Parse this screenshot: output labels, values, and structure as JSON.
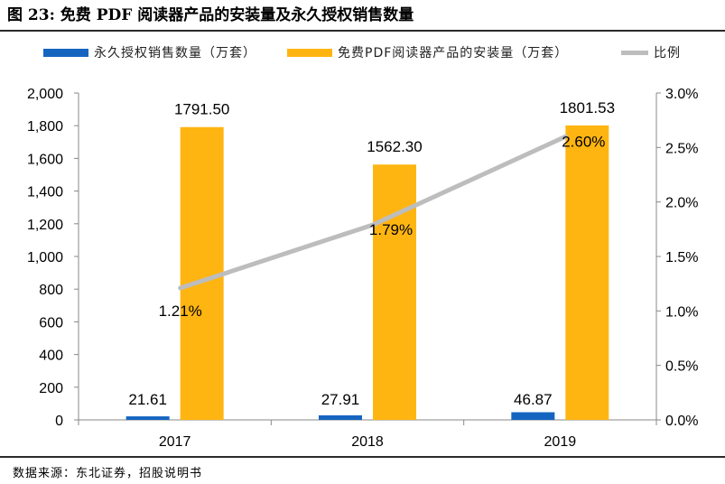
{
  "figure_title": "图 23:  免费 PDF 阅读器产品的安装量及永久授权销售数量",
  "source": "数据来源：东北证券，招股说明书",
  "colors": {
    "license": "#1565c0",
    "installs": "#ffb511",
    "ratio": "#bdbdbd"
  },
  "chart_data": {
    "type": "bar",
    "categories": [
      "2017",
      "2018",
      "2019"
    ],
    "series": [
      {
        "name": "永久授权销售数量（万套）",
        "kind": "bar",
        "axis": "left",
        "values": [
          21.61,
          27.91,
          46.87
        ],
        "labels": [
          "21.61",
          "27.91",
          "46.87"
        ]
      },
      {
        "name": "免费PDF阅读器产品的安装量（万套）",
        "kind": "bar",
        "axis": "left",
        "values": [
          1791.5,
          1562.3,
          1801.53
        ],
        "labels": [
          "1791.50",
          "1562.30",
          "1801.53"
        ]
      },
      {
        "name": "比例",
        "kind": "line",
        "axis": "right",
        "values": [
          1.21,
          1.79,
          2.6
        ],
        "labels": [
          "1.21%",
          "1.79%",
          "2.60%"
        ]
      }
    ],
    "y_left": {
      "min": 0,
      "max": 2000,
      "ticks": [
        "0",
        "200",
        "400",
        "600",
        "800",
        "1,000",
        "1,200",
        "1,400",
        "1,600",
        "1,800",
        "2,000"
      ]
    },
    "y_right": {
      "min": 0,
      "max": 3.0,
      "ticks": [
        "0.0%",
        "0.5%",
        "1.0%",
        "1.5%",
        "2.0%",
        "2.5%",
        "3.0%"
      ]
    },
    "grid": false,
    "legend_position": "top"
  }
}
